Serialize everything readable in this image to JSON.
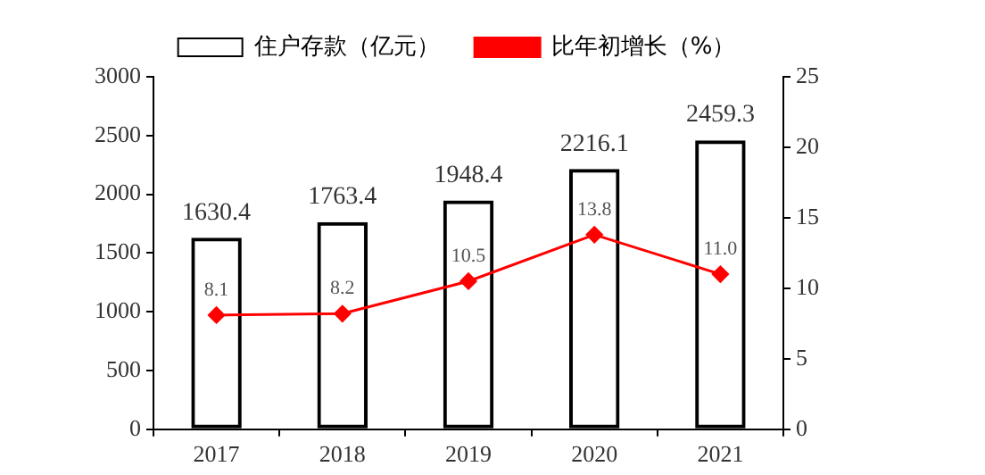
{
  "chart_data": {
    "type": "bar",
    "categories": [
      "2017",
      "2018",
      "2019",
      "2020",
      "2021"
    ],
    "series": [
      {
        "name": "住户存款（亿元）",
        "color": "#000000",
        "values": [
          1630.4,
          1763.4,
          1948.4,
          2216.1,
          2459.3
        ],
        "value_labels": [
          "1630.4",
          "1763.4",
          "1948.4",
          "2216.1",
          "2459.3"
        ]
      },
      {
        "name": "比年初增长（%）",
        "type": "line",
        "axis": "y2",
        "color": "#ff0000",
        "marker": "diamond",
        "values": [
          8.1,
          8.2,
          10.5,
          13.8,
          11.0
        ],
        "value_labels": [
          "8.1",
          "8.2",
          "10.5",
          "13.8",
          "11.0"
        ]
      }
    ],
    "ylim": [
      0,
      3000
    ],
    "yticks": [
      0,
      500,
      1000,
      1500,
      2000,
      2500,
      3000
    ],
    "y2lim": [
      0,
      25
    ],
    "y2ticks": [
      0,
      5,
      10,
      15,
      20,
      25
    ],
    "grid": false,
    "legend": "top"
  }
}
